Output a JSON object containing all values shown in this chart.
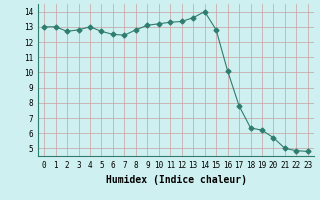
{
  "x": [
    0,
    1,
    2,
    3,
    4,
    5,
    6,
    7,
    8,
    9,
    10,
    11,
    12,
    13,
    14,
    15,
    16,
    17,
    18,
    19,
    20,
    21,
    22,
    23
  ],
  "y": [
    13.0,
    13.0,
    12.7,
    12.8,
    13.0,
    12.7,
    12.5,
    12.45,
    12.8,
    13.1,
    13.2,
    13.3,
    13.35,
    13.6,
    14.0,
    12.8,
    10.1,
    7.8,
    6.35,
    6.2,
    5.7,
    5.0,
    4.85,
    4.8
  ],
  "line_color": "#2e7d6e",
  "marker": "D",
  "marker_size": 2.5,
  "bg_color": "#cff0f0",
  "grid_color": "#c9a0a0",
  "xlabel": "Humidex (Indice chaleur)",
  "ylim": [
    4.5,
    14.5
  ],
  "xlim": [
    -0.5,
    23.5
  ],
  "yticks": [
    5,
    6,
    7,
    8,
    9,
    10,
    11,
    12,
    13,
    14
  ],
  "xtick_labels": [
    "0",
    "1",
    "2",
    "3",
    "4",
    "5",
    "6",
    "7",
    "8",
    "9",
    "10",
    "11",
    "12",
    "13",
    "14",
    "15",
    "16",
    "17",
    "18",
    "19",
    "20",
    "21",
    "22",
    "23"
  ],
  "tick_font_size": 5.5,
  "label_font_size": 7
}
